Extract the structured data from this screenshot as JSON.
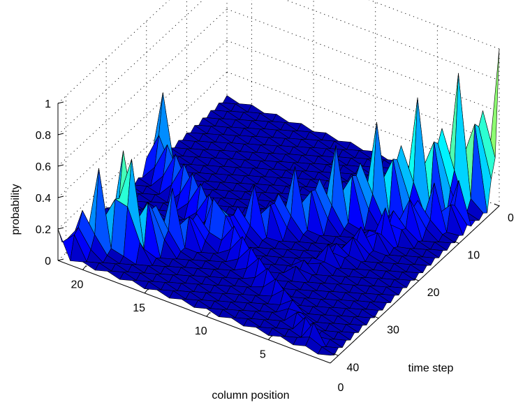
{
  "chart_data": {
    "type": "surface",
    "title": "",
    "zlabel": "probability",
    "xlabel": "column position",
    "ylabel": "time step",
    "zlim": [
      0,
      1
    ],
    "xlim": [
      0,
      22
    ],
    "ylim": [
      0,
      42
    ],
    "z_ticks": [
      0,
      0.2,
      0.4,
      0.6,
      0.8,
      1
    ],
    "x_ticks": [
      5,
      10,
      15,
      20
    ],
    "x_axis_edge_ticks": [
      0
    ],
    "y_ticks": [
      0,
      10,
      20,
      30,
      40
    ],
    "grid": true,
    "colormap": "jet",
    "colormap_stops": [
      "#00008f",
      "#0000ff",
      "#0080ff",
      "#00ffff",
      "#80ff80",
      "#ffff00",
      "#ff8000",
      "#ff0000",
      "#800000"
    ],
    "ridges": [
      {
        "time_steps": [
          0,
          2,
          4,
          6,
          8,
          10,
          12,
          14,
          16,
          18,
          20,
          22,
          24,
          26,
          28,
          30,
          32,
          34,
          36
        ],
        "column_positions": [
          0,
          1,
          2,
          3,
          4,
          5,
          6,
          7,
          8,
          9,
          10,
          11,
          12,
          13,
          14,
          15,
          16,
          17,
          18
        ],
        "peak_probability": [
          1.0,
          0.95,
          0.88,
          0.82,
          0.76,
          0.7,
          0.64,
          0.58,
          0.53,
          0.48,
          0.43,
          0.39,
          0.35,
          0.32,
          0.3,
          0.33,
          0.4,
          0.52,
          0.62
        ]
      },
      {
        "time_steps": [
          36,
          38,
          40,
          42
        ],
        "column_positions": [
          19,
          20,
          21,
          22
        ],
        "peak_probability": [
          0.62,
          0.55,
          0.35,
          0.2
        ]
      },
      {
        "time_steps": [
          20,
          24,
          28,
          32,
          36,
          40
        ],
        "column_positions": [
          21,
          17,
          13,
          9,
          5,
          2
        ],
        "peak_probability": [
          0.55,
          0.5,
          0.4,
          0.3,
          0.2,
          0.15
        ]
      },
      {
        "time_steps": [
          8,
          12,
          16,
          20,
          24,
          28
        ],
        "column_positions": [
          1,
          3,
          4,
          5,
          6,
          7
        ],
        "peak_probability": [
          0.3,
          0.35,
          0.25,
          0.2,
          0.15,
          0.1
        ]
      }
    ]
  }
}
